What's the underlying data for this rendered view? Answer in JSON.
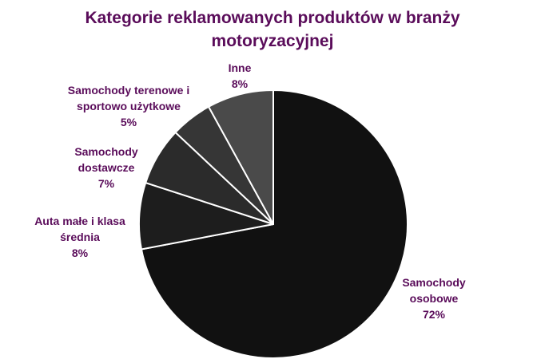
{
  "chart_data": {
    "type": "pie",
    "title": "Kategorie reklamowanych produktów w branży motoryzacyjnej",
    "categories": [
      "Samochody osobowe",
      "Auta małe i klasa średnia",
      "Samochody dostawcze",
      "Samochody terenowe i sportowo użytkowe",
      "Inne"
    ],
    "values": [
      72,
      8,
      7,
      5,
      8
    ],
    "value_labels": [
      "72%",
      "8%",
      "7%",
      "5%",
      "8%"
    ],
    "colors": [
      "#111111",
      "#1d1d1d",
      "#2b2b2b",
      "#363636",
      "#4a4a4a"
    ]
  }
}
